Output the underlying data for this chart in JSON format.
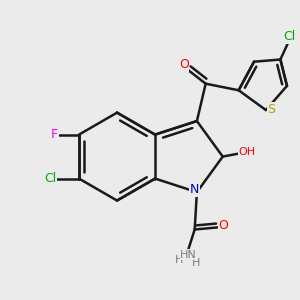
{
  "background_color": "#ebebeb",
  "atom_colors": {
    "C": "#000000",
    "N": "#0000cc",
    "O": "#ff0000",
    "F": "#ff00ff",
    "Cl_ring": "#00aa00",
    "Cl_th": "#00aa00",
    "S": "#b8a000",
    "H": "#7a7a7a"
  },
  "bond_color": "#1a1a1a",
  "bond_width": 1.8,
  "figsize": [
    3.0,
    3.0
  ],
  "dpi": 100
}
